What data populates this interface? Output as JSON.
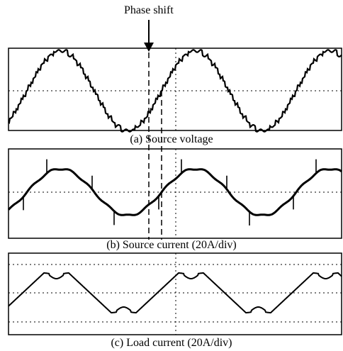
{
  "annotation": {
    "label": "Phase shift"
  },
  "chart_data": [
    {
      "type": "line",
      "title": "(a) Source voltage",
      "xlabel": "",
      "ylabel": "",
      "grid": "dotted",
      "description_of_shape": "stepped multilevel sinusoid",
      "x_cycles": 2.5,
      "series": [
        {
          "values": []
        }
      ]
    },
    {
      "type": "line",
      "title": "(b) Source current (20A/div)",
      "xlabel": "",
      "ylabel": "",
      "grid": "dotted",
      "x_cycles": 2.5,
      "series": [
        {
          "values": []
        }
      ]
    },
    {
      "type": "line",
      "title": "(c) Load current (20A/div)",
      "xlabel": "",
      "ylabel": "",
      "grid": "dotted",
      "x_cycles": 2.5,
      "series": [
        {
          "values": []
        }
      ]
    }
  ]
}
